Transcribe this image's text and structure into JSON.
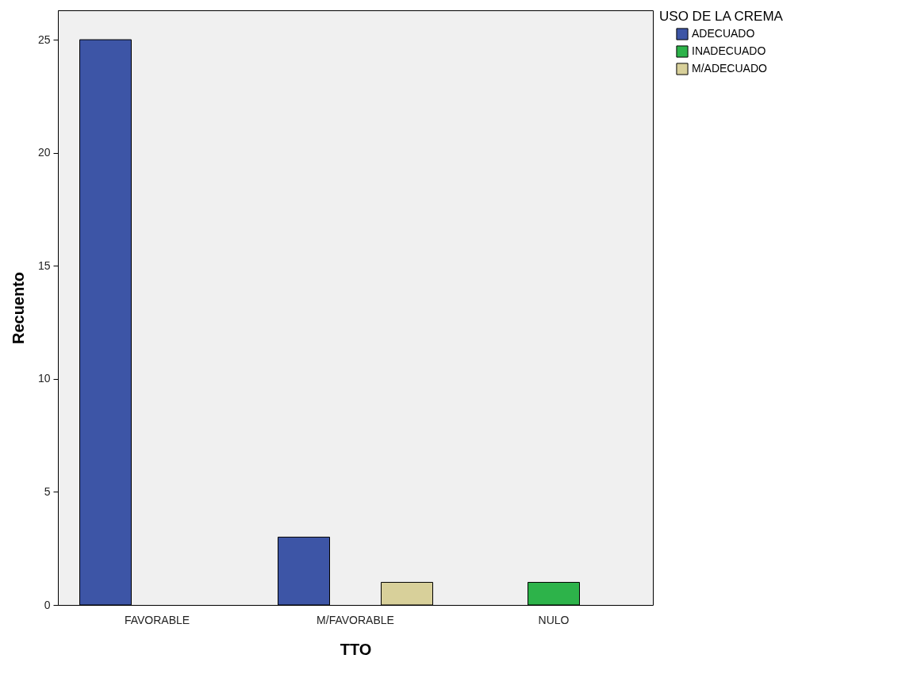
{
  "chart_data": {
    "type": "bar",
    "xlabel": "TTO",
    "ylabel": "Recuento",
    "legend_title": "USO DE LA CREMA",
    "legend": "top right",
    "grid": false,
    "categories": [
      "FAVORABLE",
      "M/FAVORABLE",
      "NULO"
    ],
    "series": [
      {
        "name": "ADECUADO",
        "color": "#3d55a6",
        "values": [
          25,
          3,
          null
        ]
      },
      {
        "name": "INADECUADO",
        "color": "#2db34a",
        "values": [
          null,
          null,
          1
        ]
      },
      {
        "name": "M/ADECUADO",
        "color": "#d8d09a",
        "values": [
          null,
          1,
          null
        ]
      }
    ],
    "ylim": [
      0,
      26.3
    ],
    "yticks": [
      0,
      5,
      10,
      15,
      20,
      25
    ]
  }
}
